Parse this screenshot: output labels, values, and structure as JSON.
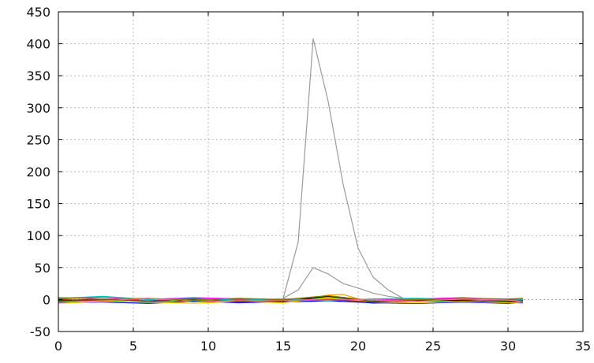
{
  "chart_data": {
    "type": "line",
    "title": "",
    "xlabel": "",
    "ylabel": "",
    "xlim": [
      0,
      35
    ],
    "ylim": [
      -50,
      450
    ],
    "xticks": [
      0,
      5,
      10,
      15,
      20,
      25,
      30,
      35
    ],
    "yticks": [
      -50,
      0,
      50,
      100,
      150,
      200,
      250,
      300,
      350,
      400,
      450
    ],
    "xtick_labels": [
      "0",
      "5",
      "10",
      "15",
      "20",
      "25",
      "30",
      "35"
    ],
    "ytick_labels": [
      "-50",
      "0",
      "50",
      "100",
      "150",
      "200",
      "250",
      "300",
      "350",
      "400",
      "450"
    ],
    "grid": true,
    "legend": "none",
    "series": [
      {
        "color": "#9a9a9a",
        "x": [
          15,
          16,
          17,
          18,
          19,
          20,
          21,
          22,
          23
        ],
        "values": [
          2,
          90,
          408,
          310,
          180,
          80,
          35,
          15,
          2
        ]
      },
      {
        "color": "#9a9a9a",
        "x": [
          15,
          16,
          17,
          18,
          19,
          20,
          21,
          22,
          23
        ],
        "values": [
          2,
          15,
          50,
          40,
          25,
          18,
          10,
          5,
          2
        ]
      },
      {
        "color": "#ff9900",
        "x": [
          15,
          16,
          17,
          18,
          19,
          20,
          21,
          22
        ],
        "values": [
          0,
          1,
          3,
          7,
          8,
          1,
          -3,
          -1
        ]
      },
      {
        "color": "#ff00ff",
        "x": [
          0,
          3,
          6,
          9,
          12,
          15,
          18,
          21,
          24,
          27,
          30,
          31
        ],
        "values": [
          1,
          4,
          0,
          3,
          1,
          0,
          2,
          -1,
          1,
          3,
          0,
          1
        ]
      },
      {
        "color": "#00cc00",
        "x": [
          0,
          3,
          6,
          9,
          12,
          15,
          18,
          21,
          24,
          27,
          30,
          31
        ],
        "values": [
          -3,
          -1,
          -5,
          -2,
          -4,
          -3,
          4,
          -6,
          -2,
          -4,
          -3,
          -2
        ]
      },
      {
        "color": "#0000ff",
        "x": [
          0,
          3,
          6,
          9,
          12,
          15,
          18,
          21,
          24,
          27,
          30,
          31
        ],
        "values": [
          -5,
          -4,
          -6,
          -3,
          -5,
          -4,
          -2,
          -5,
          -6,
          -4,
          -6,
          -5
        ]
      },
      {
        "color": "#ff0000",
        "x": [
          0,
          3,
          6,
          9,
          12,
          15,
          18,
          21,
          24,
          27,
          30,
          31
        ],
        "values": [
          0,
          -2,
          1,
          -1,
          0,
          -1,
          1,
          -3,
          -2,
          -1,
          0,
          -1
        ]
      },
      {
        "color": "#000000",
        "x": [
          0,
          3,
          6,
          9,
          12,
          15,
          18,
          21,
          24,
          27,
          30,
          31
        ],
        "values": [
          -2,
          1,
          -3,
          0,
          -2,
          -3,
          5,
          -3,
          -1,
          -2,
          -4,
          -3
        ]
      },
      {
        "color": "#ffd700",
        "x": [
          0,
          3,
          6,
          9,
          12,
          15,
          18,
          21,
          24,
          27,
          30,
          31
        ],
        "values": [
          -6,
          -3,
          -4,
          -6,
          -3,
          -5,
          3,
          -4,
          -5,
          -3,
          -5,
          -6
        ]
      },
      {
        "color": "#00bfbf",
        "x": [
          0,
          3,
          6,
          9,
          12,
          15,
          18,
          21,
          24,
          27,
          30,
          31
        ],
        "values": [
          2,
          5,
          0,
          2,
          -1,
          1,
          -2,
          1,
          2,
          0,
          1,
          0
        ]
      },
      {
        "color": "#8b4513",
        "x": [
          0,
          3,
          6,
          9,
          12,
          15,
          18,
          21,
          24,
          27,
          30,
          31
        ],
        "values": [
          -1,
          0,
          -2,
          1,
          -3,
          -2,
          0,
          -4,
          -1,
          0,
          -2,
          -3
        ]
      },
      {
        "color": "#808000",
        "x": [
          0,
          3,
          6,
          9,
          12,
          15,
          18,
          21,
          24,
          27,
          30,
          31
        ],
        "values": [
          3,
          1,
          2,
          -1,
          2,
          0,
          6,
          -2,
          0,
          2,
          1,
          2
        ]
      },
      {
        "color": "#ff6699",
        "x": [
          0,
          3,
          6,
          9,
          12,
          15,
          18,
          21,
          24,
          27,
          30,
          31
        ],
        "values": [
          -4,
          -2,
          2,
          -4,
          -1,
          -2,
          1,
          -1,
          -3,
          1,
          -1,
          -4
        ]
      }
    ]
  }
}
